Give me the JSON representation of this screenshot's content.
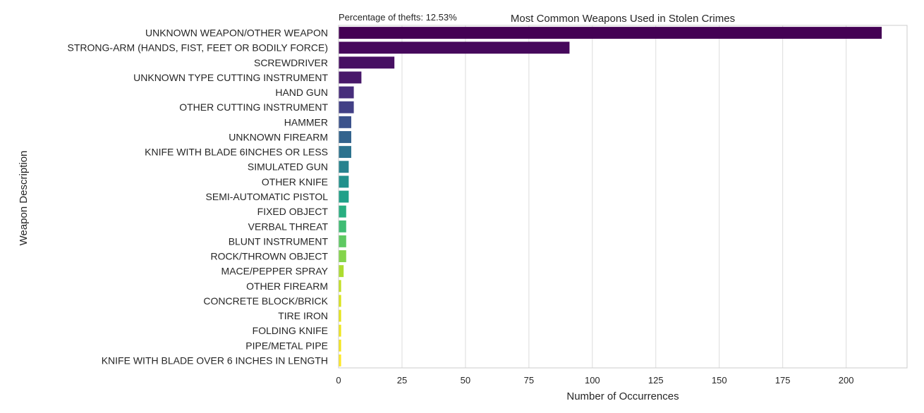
{
  "chart_data": {
    "type": "bar",
    "orientation": "horizontal",
    "title": "Most Common Weapons Used in Stolen Crimes",
    "annotation": "Percentage of thefts: 12.53%",
    "xlabel": "Number of Occurrences",
    "ylabel": "Weapon Description",
    "xlim": [
      0,
      224
    ],
    "xticks": [
      0,
      25,
      50,
      75,
      100,
      125,
      150,
      175,
      200
    ],
    "grid": "vertical",
    "palette": "viridis",
    "categories": [
      "UNKNOWN WEAPON/OTHER WEAPON",
      "STRONG-ARM (HANDS, FIST, FEET OR BODILY FORCE)",
      "SCREWDRIVER",
      "UNKNOWN TYPE CUTTING INSTRUMENT",
      "HAND GUN",
      "OTHER CUTTING INSTRUMENT",
      "HAMMER",
      "UNKNOWN FIREARM",
      "KNIFE WITH BLADE 6INCHES OR LESS",
      "SIMULATED GUN",
      "OTHER KNIFE",
      "SEMI-AUTOMATIC PISTOL",
      "FIXED OBJECT",
      "VERBAL THREAT",
      "BLUNT INSTRUMENT",
      "ROCK/THROWN OBJECT",
      "MACE/PEPPER SPRAY",
      "OTHER FIREARM",
      "CONCRETE BLOCK/BRICK",
      "TIRE IRON",
      "FOLDING KNIFE",
      "PIPE/METAL PIPE",
      "KNIFE WITH BLADE OVER 6 INCHES IN LENGTH"
    ],
    "values": [
      214,
      91,
      22,
      9,
      6,
      6,
      5,
      5,
      5,
      4,
      4,
      4,
      3,
      3,
      3,
      3,
      2,
      1,
      1,
      1,
      1,
      1,
      1
    ],
    "colors": [
      "#440154",
      "#46085c",
      "#471063",
      "#48186a",
      "#472d7b",
      "#424086",
      "#3b528b",
      "#33638d",
      "#2c728e",
      "#26828e",
      "#21918c",
      "#1fa088",
      "#28ae80",
      "#3fbc73",
      "#5ec962",
      "#84d44b",
      "#addc30",
      "#c2df23",
      "#d8e219",
      "#e5e419",
      "#eee51c",
      "#f3e51e",
      "#fde725"
    ]
  }
}
